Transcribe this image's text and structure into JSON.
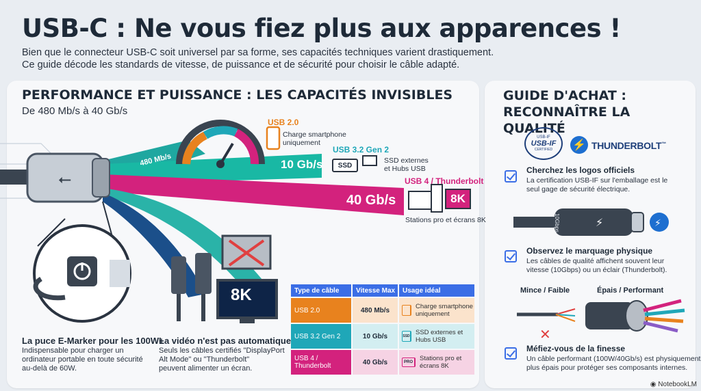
{
  "header": {
    "title": "USB-C : Ne vous fiez plus aux apparences !",
    "subtitle_line1": "Bien que le connecteur USB-C soit universel par sa forme, ses capacités techniques varient drastiquement.",
    "subtitle_line2": "Ce guide décode les standards de vitesse, de puissance et de sécurité pour choisir le câble adapté."
  },
  "performance": {
    "title": "PERFORMANCE ET PUISSANCE : LES CAPACITÉS INVISIBLES",
    "subtitle": "De 480 Mb/s à 40 Gb/s",
    "beams": [
      {
        "speed": "480 Mb/s",
        "color": "#1fa7a0"
      },
      {
        "speed": "10 Gb/s",
        "color": "#19b8a4"
      },
      {
        "speed": "40 Gb/s",
        "color": "#d3227d"
      }
    ],
    "usb2": {
      "label": "USB 2.0",
      "desc_line1": "Charge smartphone",
      "desc_line2": "uniquement",
      "color": "#e8821e"
    },
    "usb32": {
      "label": "USB 3.2 Gen 2",
      "ssd": "SSD",
      "desc_line1": "SSD externes",
      "desc_line2": "et Hubs USB",
      "color": "#1fa7b8"
    },
    "usb4": {
      "label": "USB 4 / Thunderbolt",
      "screen": "8K",
      "desc": "Stations pro et écrans 8K",
      "color": "#d3227d"
    }
  },
  "emarker": {
    "title": "La puce E-Marker pour les 100W+",
    "text_line1": "Indispensable pour charger un",
    "text_line2": "ordinateur portable en toute sécurité",
    "text_line3": "au-delà de 60W."
  },
  "video": {
    "title": "La vidéo n'est pas automatique",
    "text_line1": "Seuls les câbles certifiés \"DisplayPort",
    "text_line2": "Alt Mode\" ou \"Thunderbolt\"",
    "text_line3": "peuvent alimenter un écran.",
    "screen": "8K"
  },
  "table": {
    "headers": [
      "Type de câble",
      "Vitesse Max",
      "Usage idéal"
    ],
    "rows": [
      {
        "type": "USB 2.0",
        "speed": "480 Mb/s",
        "usage": "Charge smartphone uniquement",
        "color": "#e8821e",
        "bg": "#fbe3cc",
        "icon": ""
      },
      {
        "type": "USB 3.2 Gen 2",
        "speed": "10 Gb/s",
        "usage": "SSD externes et Hubs USB",
        "color": "#1fa7b8",
        "bg": "#d3eef1",
        "icon": "SSD"
      },
      {
        "type": "USB 4 / Thunderbolt",
        "speed": "40 Gb/s",
        "usage": "Stations pro et écrans 8K",
        "color": "#d3227d",
        "bg": "#f6d3e4",
        "icon": "PRO"
      }
    ]
  },
  "guide": {
    "title_line1": "GUIDE D'ACHAT :",
    "title_line2": "RECONNAÎTRE LA QUALITÉ",
    "usbif_top": "USB-IF",
    "usbif_main": "USB-IF",
    "usbif_bottom": "CERTIFIED",
    "thunderbolt": "THUNDERBOLT",
    "thunderbolt_mark": "™",
    "cable_mark": "10Gbps",
    "items": [
      {
        "title": "Cherchez les logos officiels",
        "line1": "La certification USB-IF sur l'emballage est le",
        "line2": "seul gage de sécurité électrique."
      },
      {
        "title": "Observez le marquage physique",
        "line1": "Les câbles de qualité affichent souvent leur",
        "line2": "vitesse (10Gbps) ou un éclair (Thunderbolt)."
      },
      {
        "title": "Méfiez-vous de la finesse",
        "line1": "Un câble performant (100W/40Gb/s) est physiquement",
        "line2": "plus épais pour protéger ses composants internes."
      }
    ],
    "thin_label": "Mince / Faible",
    "thick_label": "Épais / Performant"
  },
  "footer": {
    "brand": "NotebookLM"
  }
}
